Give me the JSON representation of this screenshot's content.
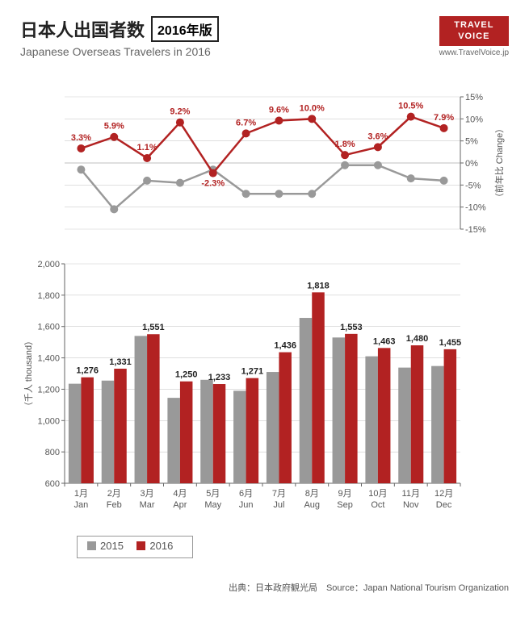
{
  "header": {
    "title_jp": "日本人出国者数",
    "badge": "2016年版",
    "subtitle": "Japanese Overseas Travelers in 2016",
    "logo_line1": "TRAVEL",
    "logo_line2": "VOICE",
    "logo_url": "www.TravelVoice.jp"
  },
  "months_jp": [
    "1月",
    "2月",
    "3月",
    "4月",
    "5月",
    "6月",
    "7月",
    "8月",
    "9月",
    "10月",
    "11月",
    "12月"
  ],
  "months_en": [
    "Jan",
    "Feb",
    "Mar",
    "Apr",
    "May",
    "Jun",
    "Jul",
    "Aug",
    "Sep",
    "Oct",
    "Nov",
    "Dec"
  ],
  "line_chart": {
    "type": "line",
    "ylim": [
      -15,
      15
    ],
    "ytick_step": 5,
    "ylabel_jp": "（前年比",
    "ylabel_en": "Change）",
    "series": [
      {
        "name": "2015_change",
        "color": "#999999",
        "values": [
          -1.5,
          -10.5,
          -4.0,
          -4.5,
          -1.5,
          -7.0,
          -7.0,
          -7.0,
          -0.5,
          -0.5,
          -3.5,
          -4.0
        ],
        "line_width": 2.5,
        "marker_size": 5
      },
      {
        "name": "2016_change",
        "color": "#b22222",
        "values": [
          3.3,
          5.9,
          1.1,
          9.2,
          -2.3,
          6.7,
          9.6,
          10.0,
          1.8,
          3.6,
          10.5,
          7.9
        ],
        "labels": [
          "3.3%",
          "5.9%",
          "1.1%",
          "9.2%",
          "-2.3%",
          "6.7%",
          "9.6%",
          "10.0%",
          "1.8%",
          "3.6%",
          "10.5%",
          "7.9%"
        ],
        "line_width": 2.5,
        "marker_size": 5
      }
    ],
    "background_color": "#ffffff",
    "grid_color": "#cccccc",
    "axis_color": "#666666",
    "label_fontsize": 11,
    "label_color": "#b22222"
  },
  "bar_chart": {
    "type": "bar",
    "ylim": [
      600,
      2000
    ],
    "ytick_step": 200,
    "ylabel_jp": "（千人",
    "ylabel_en": "thousand）",
    "series": [
      {
        "name": "2015",
        "color": "#999999",
        "values": [
          1235,
          1255,
          1540,
          1145,
          1260,
          1190,
          1310,
          1655,
          1530,
          1410,
          1338,
          1348
        ]
      },
      {
        "name": "2016",
        "color": "#b22222",
        "values": [
          1276,
          1331,
          1551,
          1250,
          1233,
          1271,
          1436,
          1818,
          1553,
          1463,
          1480,
          1455
        ],
        "labels": [
          "1,276",
          "1,331",
          "1,551",
          "1,250",
          "1,233",
          "1,271",
          "1,436",
          "1,818",
          "1,553",
          "1,463",
          "1,480",
          "1,455"
        ]
      }
    ],
    "bar_width": 0.38,
    "background_color": "#ffffff",
    "grid_color": "#cccccc",
    "axis_color": "#666666",
    "label_fontsize": 11,
    "label_color": "#222222"
  },
  "legend": {
    "items": [
      {
        "label": "2015",
        "color": "#999999"
      },
      {
        "label": "2016",
        "color": "#b22222"
      }
    ]
  },
  "source": "出典：日本政府観光局　Source：Japan National Tourism Organization"
}
